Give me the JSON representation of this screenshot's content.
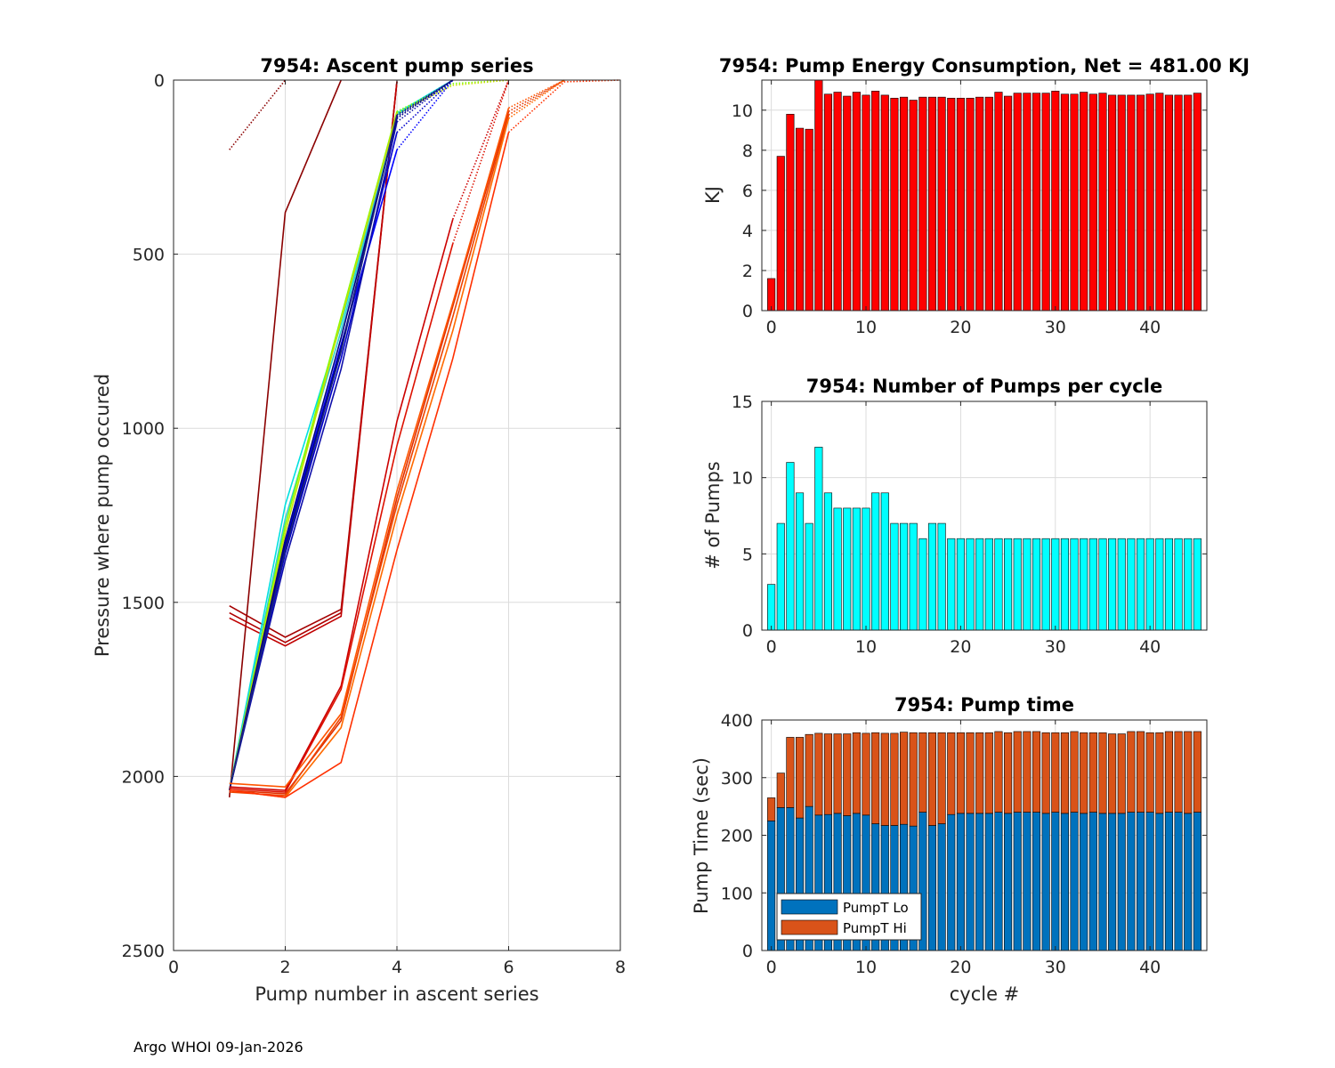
{
  "footer": "Argo WHOI 09-Jan-2026",
  "colors": {
    "energy_bar": "#ff0000",
    "pumps_bar": "#00ffff",
    "pumpT_lo": "#0072bd",
    "pumpT_hi": "#d95319"
  },
  "chart_data": [
    {
      "id": "ascent",
      "type": "line",
      "title": "7954: Ascent pump series",
      "xlabel": "Pump number in ascent series",
      "ylabel": "Pressure where pump occured",
      "xlim": [
        0,
        8
      ],
      "ylim": [
        2500,
        0
      ],
      "xticks": [
        0,
        2,
        4,
        6,
        8
      ],
      "yticks": [
        0,
        500,
        1000,
        1500,
        2000,
        2500
      ],
      "series": [
        {
          "color": "#8b0000",
          "dotted_after": 0,
          "x": [
            1,
            2
          ],
          "y": [
            200,
            0
          ]
        },
        {
          "color": "#8b0000",
          "dotted_after": 2,
          "x": [
            1,
            2,
            3
          ],
          "y": [
            2060,
            380,
            0
          ]
        },
        {
          "color": "#a50000",
          "dotted_after": 3,
          "x": [
            1,
            2,
            3,
            4
          ],
          "y": [
            1510,
            1600,
            1520,
            4
          ]
        },
        {
          "color": "#b00000",
          "dotted_after": 3,
          "x": [
            1,
            2,
            3,
            4
          ],
          "y": [
            1530,
            1615,
            1530,
            4
          ]
        },
        {
          "color": "#c00000",
          "dotted_after": 3,
          "x": [
            1,
            2,
            3,
            4
          ],
          "y": [
            1545,
            1625,
            1540,
            4
          ]
        },
        {
          "color": "#00e0e0",
          "dotted_after": 4,
          "x": [
            1,
            2,
            3,
            4,
            5
          ],
          "y": [
            2040,
            1220,
            700,
            95,
            0
          ]
        },
        {
          "color": "#33cccc",
          "dotted_after": 4,
          "x": [
            1,
            2,
            3,
            4,
            5
          ],
          "y": [
            2040,
            1260,
            720,
            100,
            0
          ]
        },
        {
          "color": "#7fff00",
          "dotted_after": 3,
          "x": [
            1,
            2,
            3,
            4,
            5,
            6
          ],
          "y": [
            2040,
            1280,
            680,
            90,
            10,
            0
          ]
        },
        {
          "color": "#c6e000",
          "dotted_after": 3,
          "x": [
            1,
            2,
            3,
            4,
            5,
            6
          ],
          "y": [
            2040,
            1300,
            690,
            95,
            15,
            0
          ]
        },
        {
          "color": "#0000ff",
          "dotted_after": 3,
          "x": [
            1,
            2,
            3,
            4,
            5
          ],
          "y": [
            2040,
            1330,
            760,
            200,
            0
          ]
        },
        {
          "color": "#0000cd",
          "dotted_after": 3,
          "x": [
            1,
            2,
            3,
            4,
            5
          ],
          "y": [
            2040,
            1360,
            800,
            150,
            0
          ]
        },
        {
          "color": "#1010aa",
          "dotted_after": 3,
          "x": [
            1,
            2,
            3,
            4,
            5
          ],
          "y": [
            2040,
            1380,
            830,
            120,
            0
          ]
        },
        {
          "color": "#000080",
          "dotted_after": 3,
          "x": [
            1,
            2,
            3,
            4,
            5
          ],
          "y": [
            2040,
            1320,
            740,
            110,
            0
          ]
        },
        {
          "color": "#00008b",
          "dotted_after": 3,
          "x": [
            1,
            2,
            3,
            4,
            5
          ],
          "y": [
            2040,
            1340,
            770,
            105,
            0
          ]
        },
        {
          "color": "#1a237e",
          "dotted_after": 3,
          "x": [
            1,
            2,
            3,
            4,
            5
          ],
          "y": [
            2040,
            1350,
            780,
            100,
            0
          ]
        },
        {
          "color": "#cc0000",
          "dotted_after": 4,
          "x": [
            1,
            2,
            3,
            4,
            5,
            6
          ],
          "y": [
            2030,
            2040,
            1740,
            980,
            400,
            0
          ]
        },
        {
          "color": "#dd1100",
          "dotted_after": 4,
          "x": [
            1,
            2,
            3,
            4,
            5,
            6
          ],
          "y": [
            2035,
            2045,
            1750,
            1050,
            470,
            0
          ]
        },
        {
          "color": "#e03000",
          "dotted_after": 5,
          "x": [
            1,
            2,
            3,
            4,
            5,
            6,
            7
          ],
          "y": [
            2040,
            2050,
            1840,
            1200,
            650,
            90,
            0
          ]
        },
        {
          "color": "#ee4400",
          "dotted_after": 5,
          "x": [
            1,
            2,
            3,
            4,
            5,
            6,
            7
          ],
          "y": [
            2045,
            2055,
            1830,
            1220,
            680,
            100,
            0
          ]
        },
        {
          "color": "#ff5500",
          "dotted_after": 5,
          "x": [
            1,
            2,
            3,
            4,
            5,
            6,
            7
          ],
          "y": [
            2020,
            2030,
            1820,
            1180,
            640,
            80,
            0
          ]
        },
        {
          "color": "#ff6a00",
          "dotted_after": 5,
          "x": [
            1,
            2,
            3,
            4,
            5,
            6,
            7
          ],
          "y": [
            2040,
            2060,
            1860,
            1250,
            720,
            110,
            0
          ]
        },
        {
          "color": "#ff3000",
          "dotted_after": 5,
          "x": [
            1,
            2,
            3,
            4,
            5,
            6,
            7,
            8
          ],
          "y": [
            2040,
            2060,
            1960,
            1350,
            800,
            150,
            5,
            0
          ]
        }
      ]
    },
    {
      "id": "energy",
      "type": "bar",
      "title": "7954: Pump Energy Consumption,  Net = 481.00 KJ",
      "xlabel": "",
      "ylabel": "KJ",
      "xlim": [
        -1,
        46
      ],
      "ylim": [
        0,
        11.5
      ],
      "xticks": [
        0,
        10,
        20,
        30,
        40
      ],
      "yticks": [
        0,
        2,
        4,
        6,
        8,
        10
      ],
      "x": [
        0,
        1,
        2,
        3,
        4,
        5,
        6,
        7,
        8,
        9,
        10,
        11,
        12,
        13,
        14,
        15,
        16,
        17,
        18,
        19,
        20,
        21,
        22,
        23,
        24,
        25,
        26,
        27,
        28,
        29,
        30,
        31,
        32,
        33,
        34,
        35,
        36,
        37,
        38,
        39,
        40,
        41,
        42,
        43,
        44,
        45
      ],
      "values": [
        1.6,
        7.7,
        9.8,
        9.1,
        9.05,
        11.5,
        10.8,
        10.9,
        10.7,
        10.9,
        10.75,
        10.95,
        10.75,
        10.6,
        10.65,
        10.5,
        10.65,
        10.65,
        10.65,
        10.6,
        10.6,
        10.6,
        10.65,
        10.65,
        10.9,
        10.7,
        10.85,
        10.85,
        10.85,
        10.85,
        10.95,
        10.8,
        10.8,
        10.9,
        10.8,
        10.85,
        10.75,
        10.75,
        10.75,
        10.75,
        10.8,
        10.85,
        10.75,
        10.75,
        10.75,
        10.85
      ]
    },
    {
      "id": "pumps",
      "type": "bar",
      "title": "7954: Number of Pumps per cycle",
      "xlabel": "",
      "ylabel": "# of Pumps",
      "xlim": [
        -1,
        46
      ],
      "ylim": [
        0,
        15
      ],
      "xticks": [
        0,
        10,
        20,
        30,
        40
      ],
      "yticks": [
        0,
        5,
        10,
        15
      ],
      "x": [
        0,
        1,
        2,
        3,
        4,
        5,
        6,
        7,
        8,
        9,
        10,
        11,
        12,
        13,
        14,
        15,
        16,
        17,
        18,
        19,
        20,
        21,
        22,
        23,
        24,
        25,
        26,
        27,
        28,
        29,
        30,
        31,
        32,
        33,
        34,
        35,
        36,
        37,
        38,
        39,
        40,
        41,
        42,
        43,
        44,
        45
      ],
      "values": [
        3,
        7,
        11,
        9,
        7,
        12,
        9,
        8,
        8,
        8,
        8,
        9,
        9,
        7,
        7,
        7,
        6,
        7,
        7,
        6,
        6,
        6,
        6,
        6,
        6,
        6,
        6,
        6,
        6,
        6,
        6,
        6,
        6,
        6,
        6,
        6,
        6,
        6,
        6,
        6,
        6,
        6,
        6,
        6,
        6,
        6
      ]
    },
    {
      "id": "pumptime",
      "type": "bar",
      "stacked": true,
      "title": "7954: Pump time",
      "xlabel": "cycle #",
      "ylabel": "Pump Time (sec)",
      "xlim": [
        -1,
        46
      ],
      "ylim": [
        0,
        400
      ],
      "xticks": [
        0,
        10,
        20,
        30,
        40
      ],
      "yticks": [
        0,
        100,
        200,
        300,
        400
      ],
      "legend": [
        "PumpT Lo",
        "PumpT Hi"
      ],
      "legend_position": "bottom-left",
      "x": [
        0,
        1,
        2,
        3,
        4,
        5,
        6,
        7,
        8,
        9,
        10,
        11,
        12,
        13,
        14,
        15,
        16,
        17,
        18,
        19,
        20,
        21,
        22,
        23,
        24,
        25,
        26,
        27,
        28,
        29,
        30,
        31,
        32,
        33,
        34,
        35,
        36,
        37,
        38,
        39,
        40,
        41,
        42,
        43,
        44,
        45
      ],
      "series": [
        {
          "name": "PumpT Lo",
          "values": [
            225,
            248,
            248,
            230,
            250,
            235,
            236,
            238,
            234,
            238,
            235,
            220,
            217,
            217,
            219,
            216,
            240,
            217,
            220,
            236,
            238,
            238,
            238,
            238,
            240,
            238,
            240,
            240,
            240,
            238,
            240,
            238,
            240,
            238,
            240,
            238,
            238,
            238,
            240,
            240,
            240,
            238,
            240,
            240,
            238,
            240
          ]
        },
        {
          "name": "PumpT Hi",
          "values": [
            40,
            60,
            122,
            140,
            125,
            142,
            140,
            138,
            142,
            140,
            142,
            158,
            160,
            160,
            160,
            162,
            138,
            161,
            158,
            142,
            140,
            140,
            140,
            140,
            140,
            140,
            140,
            140,
            140,
            140,
            138,
            140,
            140,
            140,
            138,
            140,
            138,
            138,
            140,
            140,
            138,
            140,
            140,
            140,
            142,
            140
          ]
        }
      ]
    }
  ]
}
